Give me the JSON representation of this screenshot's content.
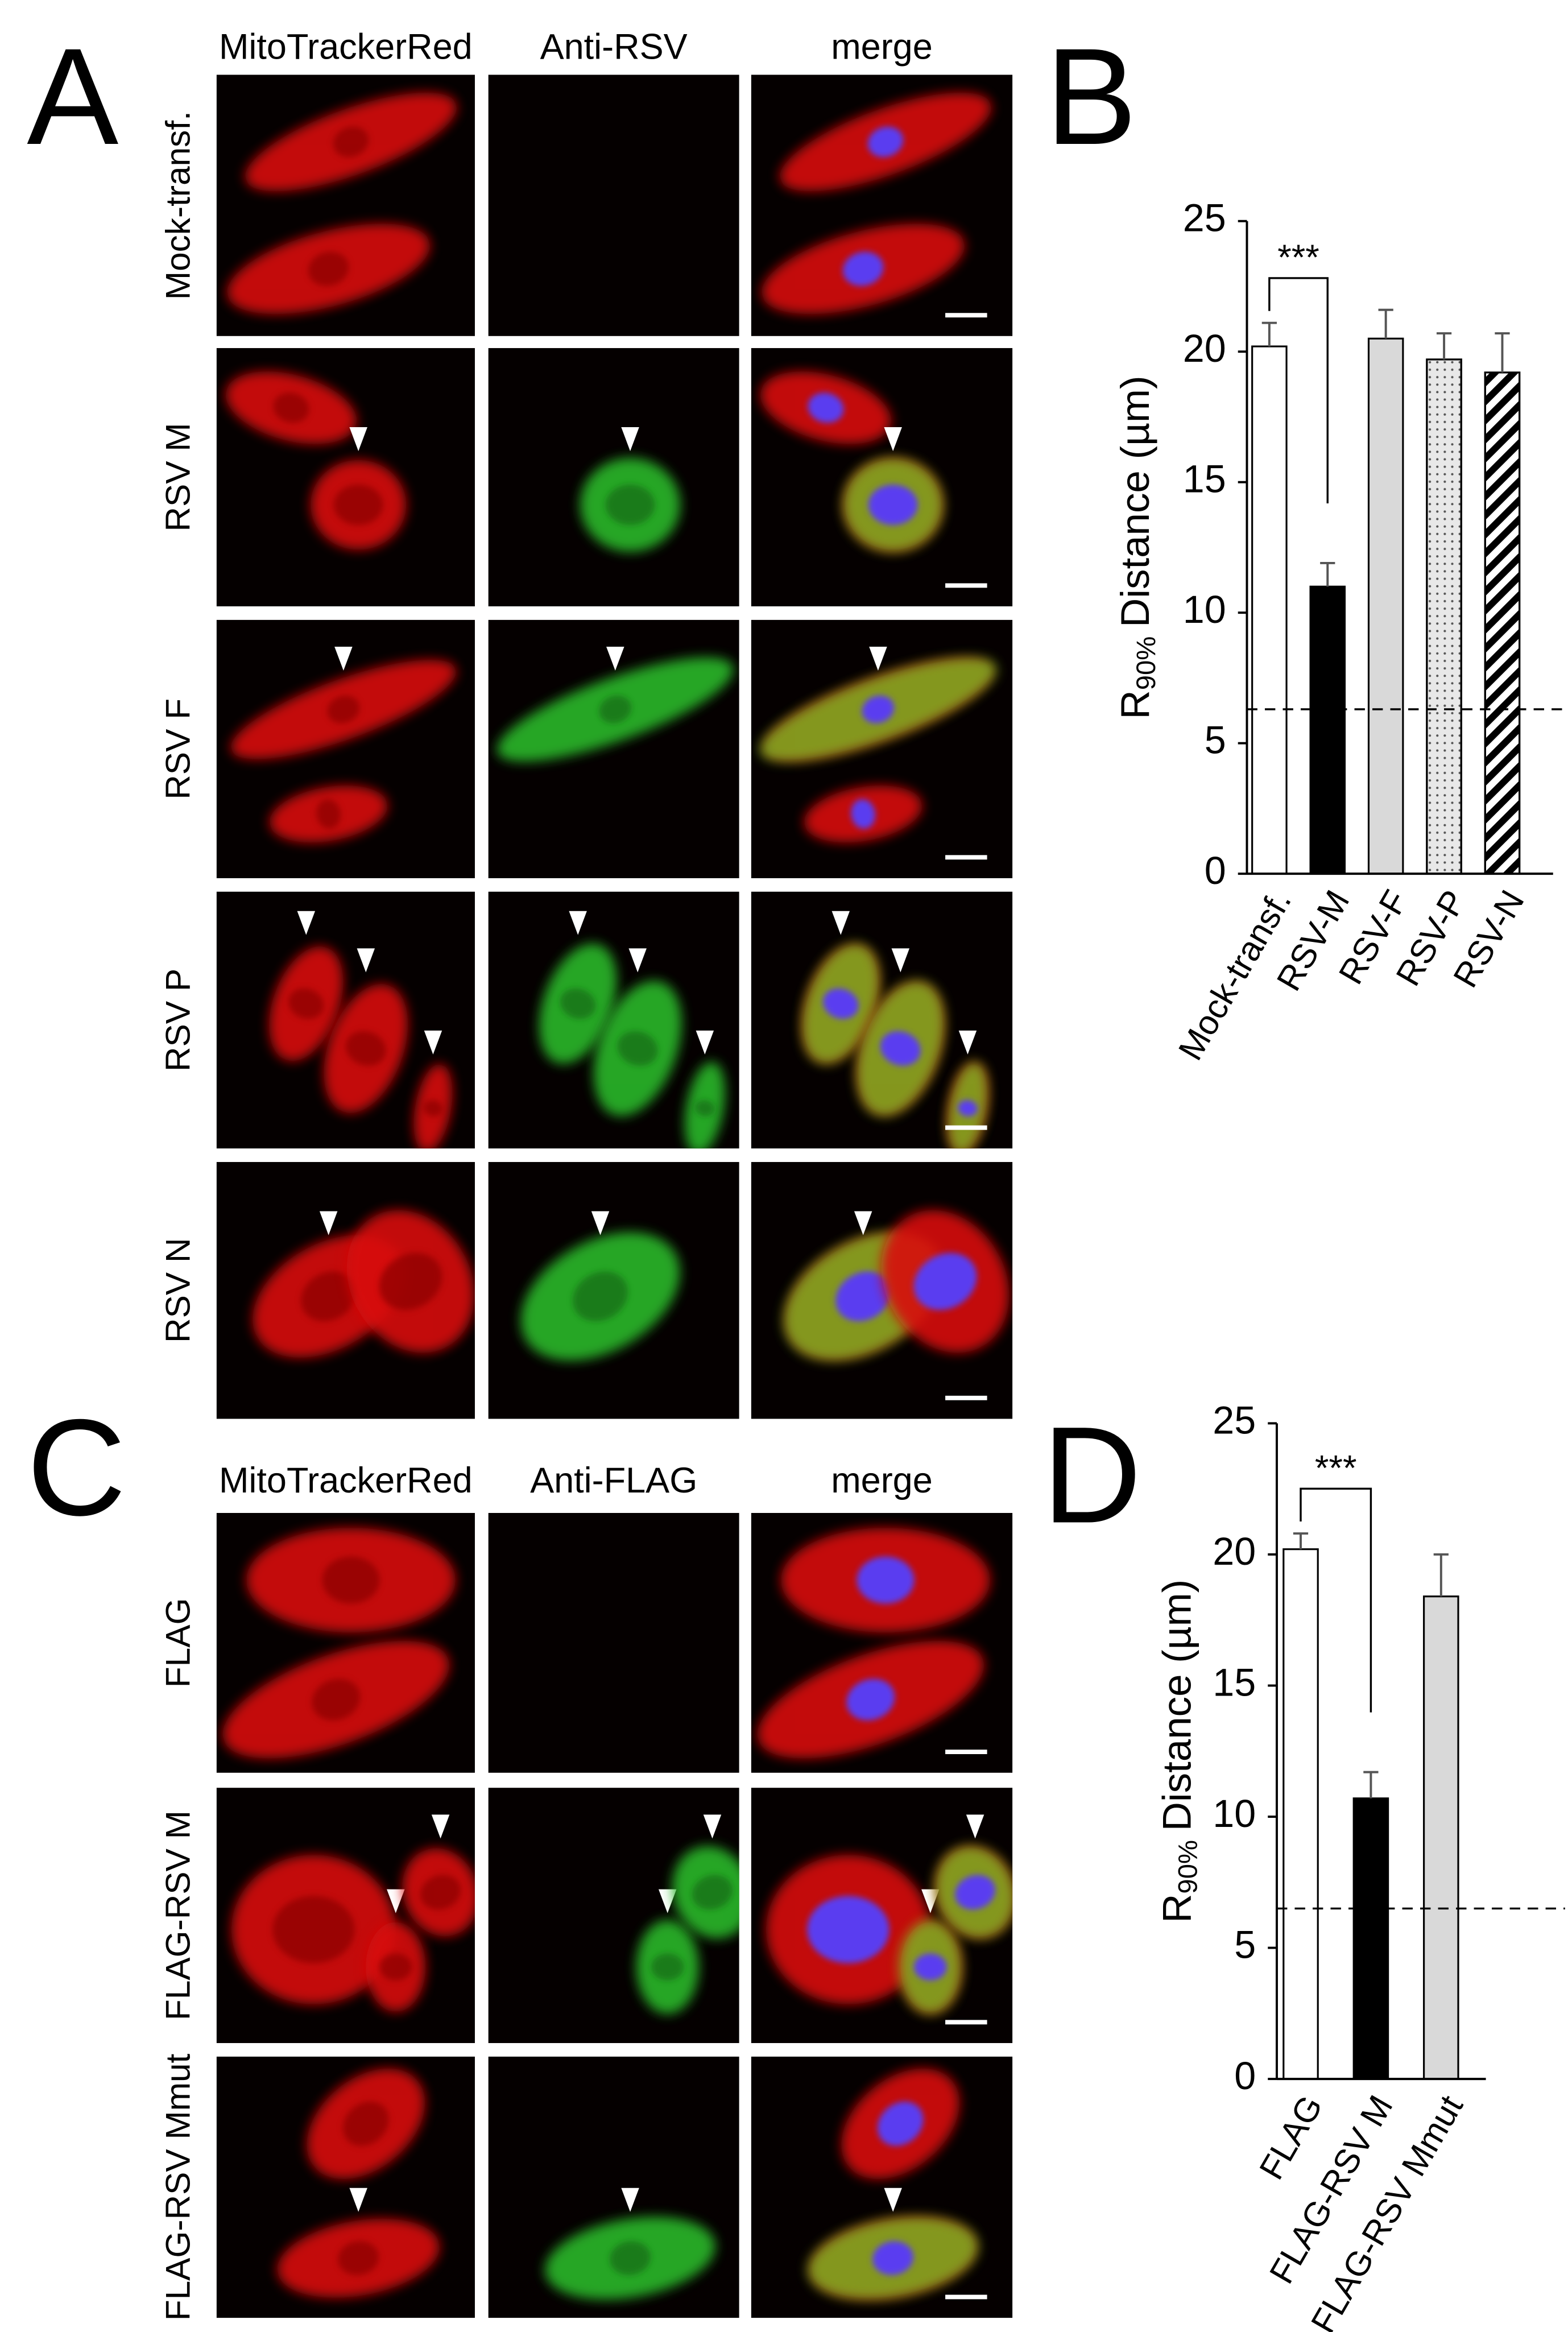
{
  "panel_labels": [
    "A",
    "B",
    "C",
    "D"
  ],
  "panel_a": {
    "column_headers": [
      "MitoTrackerRed",
      "Anti-RSV",
      "merge"
    ],
    "row_labels": [
      "Mock-transf.",
      "RSV M",
      "RSV F",
      "RSV P",
      "RSV N"
    ]
  },
  "panel_c": {
    "column_headers": [
      "MitoTrackerRed",
      "Anti-FLAG",
      "merge"
    ],
    "row_labels": [
      "FLAG",
      "FLAG-RSV M",
      "FLAG-RSV Mmut"
    ]
  },
  "chart_data": [
    {
      "type": "bar",
      "categories": [
        "Mock-transf.",
        "RSV-M",
        "RSV-F",
        "RSV-P",
        "RSV-N"
      ],
      "values": [
        20.2,
        11.0,
        20.5,
        19.7,
        19.2
      ],
      "errors": [
        0.9,
        0.9,
        1.1,
        1.0,
        1.5
      ],
      "colors": [
        "#ffffff",
        "#000000",
        "#d9d9d9",
        "#e8e8e8",
        "#ffffff"
      ],
      "patterns": [
        "none",
        "none",
        "none",
        "dots",
        "hatch"
      ],
      "ylabel": {
        "base": "R",
        "subscript": "90%",
        "rest": "Distance (µm)"
      },
      "ylim": [
        0,
        25
      ],
      "yticks": [
        0,
        5,
        10,
        15,
        20,
        25
      ],
      "reference_line": 6.3,
      "significance": "***"
    },
    {
      "type": "bar",
      "categories": [
        "FLAG",
        "FLAG-RSV M",
        "FLAG-RSV Mmut"
      ],
      "values": [
        20.2,
        10.7,
        18.4
      ],
      "errors": [
        0.6,
        1.0,
        1.6
      ],
      "colors": [
        "#ffffff",
        "#000000",
        "#d9d9d9"
      ],
      "patterns": [
        "none",
        "none",
        "none"
      ],
      "ylabel": {
        "base": "R",
        "subscript": "90%",
        "rest": "Distance (µm)"
      },
      "ylim": [
        0,
        25
      ],
      "yticks": [
        0,
        5,
        10,
        15,
        20,
        25
      ],
      "reference_line": 6.5,
      "significance": "***"
    }
  ]
}
